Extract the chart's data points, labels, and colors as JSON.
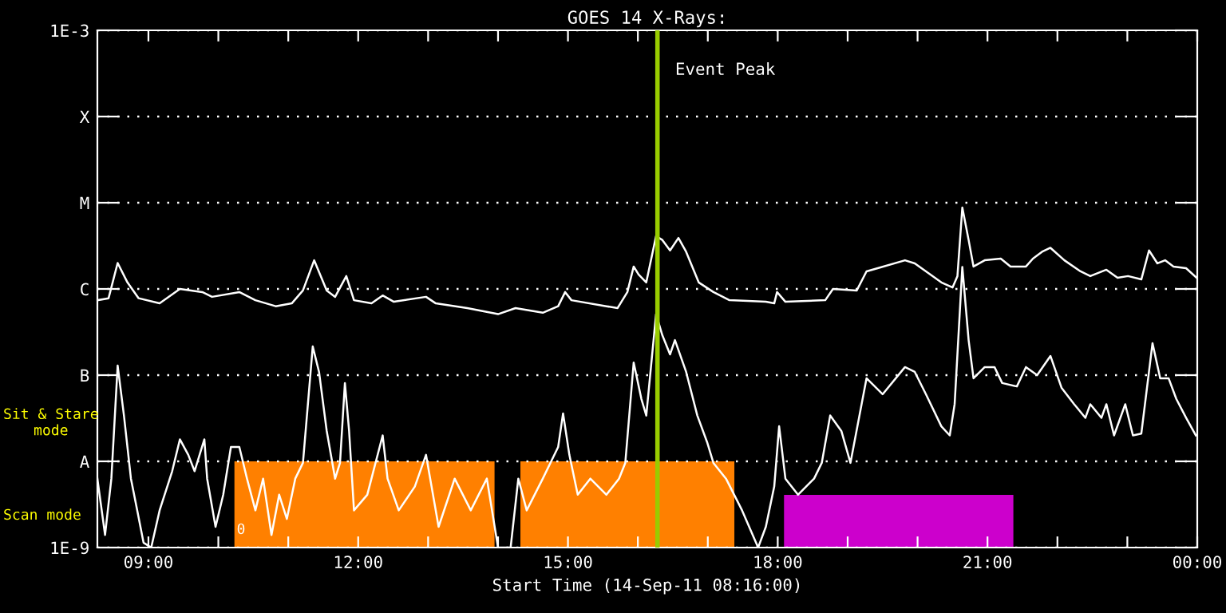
{
  "chart_data": {
    "type": "line",
    "title": "GOES 14 X-Rays:",
    "xlabel": "Start Time (14-Sep-11 08:16:00)",
    "log": "y",
    "grid": "y",
    "legend": false,
    "marker": "none",
    "line_style": "solid",
    "xlim": [
      8.27,
      24.0
    ],
    "ylim": [
      1e-09,
      0.001
    ],
    "xticks": [
      {
        "value": 9,
        "label": "09:00"
      },
      {
        "value": 10,
        "label": null
      },
      {
        "value": 11,
        "label": null
      },
      {
        "value": 12,
        "label": "12:00"
      },
      {
        "value": 13,
        "label": null
      },
      {
        "value": 14,
        "label": null
      },
      {
        "value": 15,
        "label": "15:00"
      },
      {
        "value": 16,
        "label": null
      },
      {
        "value": 17,
        "label": null
      },
      {
        "value": 18,
        "label": "18:00"
      },
      {
        "value": 19,
        "label": null
      },
      {
        "value": 20,
        "label": null
      },
      {
        "value": 21,
        "label": "21:00"
      },
      {
        "value": 22,
        "label": null
      },
      {
        "value": 23,
        "label": null
      },
      {
        "value": 24,
        "label": "00:00"
      }
    ],
    "yticks": [
      {
        "value": 1e-09,
        "label": "1E-9"
      },
      {
        "value": 1e-08,
        "label": "A"
      },
      {
        "value": 1e-07,
        "label": "B"
      },
      {
        "value": 1e-06,
        "label": "C"
      },
      {
        "value": 1e-05,
        "label": "M"
      },
      {
        "value": 0.0001,
        "label": "X"
      },
      {
        "value": 0.001,
        "label": "1E-3"
      }
    ],
    "series": [
      {
        "color": "#ffffff",
        "x": [
          8.27,
          8.43,
          8.56,
          8.7,
          8.86,
          9.16,
          9.45,
          9.77,
          9.91,
          10.3,
          10.53,
          10.82,
          11.05,
          11.21,
          11.37,
          11.55,
          11.67,
          11.83,
          11.94,
          12.19,
          12.35,
          12.51,
          12.97,
          13.11,
          13.56,
          14.0,
          14.25,
          14.64,
          14.86,
          14.96,
          15.05,
          15.55,
          15.71,
          15.85,
          15.94,
          16.01,
          16.12,
          16.26,
          16.35,
          16.46,
          16.58,
          16.69,
          16.87,
          17.08,
          17.31,
          17.83,
          17.95,
          17.99,
          18.11,
          18.68,
          18.79,
          19.13,
          19.27,
          19.43,
          19.82,
          19.96,
          20.34,
          20.5,
          20.57,
          20.64,
          20.73,
          20.8,
          20.96,
          21.19,
          21.33,
          21.55,
          21.65,
          21.78,
          21.9,
          22.1,
          22.33,
          22.47,
          22.7,
          22.86,
          23.01,
          23.2,
          23.31,
          23.43,
          23.54,
          23.66,
          23.84,
          23.99
        ],
        "values": [
          7.4e-07,
          7.8e-07,
          2e-06,
          1.19e-06,
          7.8e-07,
          6.8e-07,
          1e-06,
          9.2e-07,
          8.1e-07,
          9.2e-07,
          7.4e-07,
          6.3e-07,
          6.8e-07,
          9.6e-07,
          2.15e-06,
          9.6e-07,
          8.1e-07,
          1.41e-06,
          7.4e-07,
          6.8e-07,
          8.4e-07,
          7.1e-07,
          8.1e-07,
          6.8e-07,
          6e-07,
          5.1e-07,
          6e-07,
          5.3e-07,
          6.3e-07,
          9.2e-07,
          7.4e-07,
          6.3e-07,
          6e-07,
          9.2e-07,
          1.82e-06,
          1.47e-06,
          1.19e-06,
          4.1e-06,
          3.7e-06,
          2.8e-06,
          3.9e-06,
          2.7e-06,
          1.19e-06,
          9.2e-07,
          7.4e-07,
          7.1e-07,
          6.8e-07,
          9.2e-07,
          7.1e-07,
          7.4e-07,
          1e-06,
          9.6e-07,
          1.6e-06,
          1.74e-06,
          2.15e-06,
          1.98e-06,
          1.19e-06,
          1.04e-06,
          1.41e-06,
          8.8e-06,
          3.7e-06,
          1.82e-06,
          2.15e-06,
          2.25e-06,
          1.82e-06,
          1.82e-06,
          2.25e-06,
          2.7e-06,
          3e-06,
          2.15e-06,
          1.6e-06,
          1.41e-06,
          1.67e-06,
          1.35e-06,
          1.41e-06,
          1.29e-06,
          2.8e-06,
          1.98e-06,
          2.15e-06,
          1.82e-06,
          1.74e-06,
          1.35e-06
        ]
      },
      {
        "color": "#ffffff",
        "x": [
          8.27,
          8.38,
          8.47,
          8.56,
          8.65,
          8.75,
          8.84,
          8.93,
          9.04,
          9.16,
          9.34,
          9.45,
          9.57,
          9.66,
          9.8,
          9.84,
          9.96,
          10.07,
          10.18,
          10.3,
          10.41,
          10.53,
          10.64,
          10.76,
          10.87,
          10.98,
          11.1,
          11.21,
          11.35,
          11.44,
          11.55,
          11.67,
          11.74,
          11.81,
          11.87,
          11.94,
          12.13,
          12.35,
          12.42,
          12.58,
          12.81,
          12.97,
          13.15,
          13.38,
          13.61,
          13.84,
          14.0,
          14.18,
          14.29,
          14.41,
          14.64,
          14.86,
          14.93,
          15.02,
          15.14,
          15.32,
          15.55,
          15.73,
          15.82,
          15.94,
          16.05,
          16.12,
          16.26,
          16.35,
          16.46,
          16.53,
          16.69,
          16.85,
          16.99,
          17.08,
          17.26,
          17.49,
          17.72,
          17.83,
          17.95,
          18.02,
          18.11,
          18.29,
          18.52,
          18.63,
          18.75,
          18.91,
          19.04,
          19.27,
          19.5,
          19.82,
          19.96,
          20.12,
          20.34,
          20.46,
          20.53,
          20.64,
          20.73,
          20.8,
          20.96,
          21.1,
          21.21,
          21.42,
          21.55,
          21.71,
          21.9,
          22.06,
          22.24,
          22.4,
          22.47,
          22.63,
          22.7,
          22.81,
          22.97,
          23.08,
          23.2,
          23.36,
          23.47,
          23.59,
          23.7,
          23.84,
          23.98
        ],
        "values": [
          6.3e-09,
          1.4e-09,
          6.3e-09,
          1.29e-07,
          3.4e-08,
          6.3e-09,
          2.7e-09,
          1.14e-09,
          1e-09,
          2.7e-09,
          7.7e-09,
          1.8e-08,
          1.19e-08,
          7.7e-09,
          1.8e-08,
          6.3e-09,
          1.74e-09,
          4.1e-09,
          1.47e-08,
          1.47e-08,
          6.3e-09,
          2.7e-09,
          6.3e-09,
          1.4e-09,
          4.1e-09,
          2.15e-09,
          6.3e-09,
          9.6e-09,
          2.15e-07,
          1.09e-07,
          2.25e-08,
          6.3e-09,
          9.6e-09,
          8.1e-08,
          2.25e-08,
          2.7e-09,
          4.1e-09,
          2e-08,
          6.3e-09,
          2.7e-09,
          5.1e-09,
          1.19e-08,
          1.74e-09,
          6.3e-09,
          2.7e-09,
          6.3e-09,
          1e-09,
          1e-09,
          6.3e-09,
          2.7e-09,
          6.3e-09,
          1.47e-08,
          3.6e-08,
          1.19e-08,
          4.1e-09,
          6.3e-09,
          4.1e-09,
          6.3e-09,
          9.6e-09,
          1.4e-07,
          5.3e-08,
          3.4e-08,
          5.1e-07,
          2.9e-07,
          1.74e-07,
          2.55e-07,
          1.09e-07,
          3.4e-08,
          1.67e-08,
          9.6e-09,
          6.3e-09,
          2.7e-09,
          1e-09,
          1.74e-09,
          5.1e-09,
          2.55e-08,
          6.3e-09,
          4.1e-09,
          6.3e-09,
          9.6e-09,
          3.4e-08,
          2.25e-08,
          9.6e-09,
          9.2e-08,
          6e-08,
          1.24e-07,
          1.09e-07,
          6e-08,
          2.55e-08,
          2e-08,
          4.6e-08,
          1.8e-06,
          2.55e-07,
          9.2e-08,
          1.24e-07,
          1.24e-07,
          8.1e-08,
          7.4e-08,
          1.24e-07,
          1e-07,
          1.67e-07,
          7.1e-08,
          4.6e-08,
          3.2e-08,
          4.6e-08,
          3.2e-08,
          4.6e-08,
          2e-08,
          4.6e-08,
          2e-08,
          2.1e-08,
          2.35e-07,
          9.2e-08,
          9.2e-08,
          5.3e-08,
          3.2e-08,
          2e-08
        ]
      }
    ],
    "ref_lines": [
      {
        "axis": "x",
        "value": 16.28,
        "label": "Event Peak",
        "color": "#99cc00"
      }
    ],
    "bands": [
      {
        "axis": "x",
        "from": 10.23,
        "to": 13.95,
        "color": "#ff8000"
      },
      {
        "axis": "x",
        "from": 14.32,
        "to": 17.38,
        "color": "#ff8000"
      },
      {
        "axis": "x",
        "from": 18.09,
        "to": 21.37,
        "color": "#cc00cc"
      }
    ],
    "annotations": [
      "Sit & Stare\nmode",
      "Scan mode",
      "0"
    ]
  }
}
